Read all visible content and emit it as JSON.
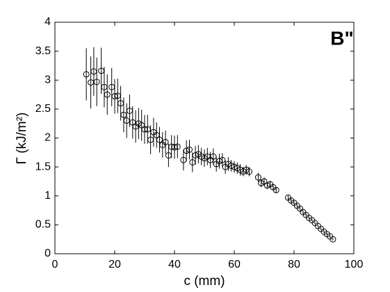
{
  "chart_data": {
    "type": "scatter",
    "annotation": "B\"",
    "xlabel": "c (mm)",
    "ylabel": "Γ (kJ/m²)",
    "x": [
      10.5,
      12,
      13,
      14,
      15.5,
      16.5,
      17.5,
      19,
      20,
      21,
      22,
      23,
      24,
      25,
      26,
      27,
      28,
      29,
      30,
      31,
      32,
      33,
      34,
      35,
      36,
      37,
      38,
      39,
      40,
      41,
      43,
      44,
      45,
      46,
      47,
      48,
      49,
      50,
      51,
      52,
      53,
      54,
      55,
      56,
      57,
      58,
      59,
      60,
      61,
      62,
      63,
      64,
      65,
      68,
      69,
      70,
      71,
      72,
      73,
      74,
      78,
      79,
      80,
      81,
      82,
      83,
      84,
      85,
      86,
      87,
      88,
      89,
      90,
      91,
      92,
      93
    ],
    "values": [
      3.1,
      2.96,
      3.15,
      2.97,
      3.16,
      2.88,
      2.75,
      2.88,
      2.72,
      2.73,
      2.6,
      2.4,
      2.3,
      2.47,
      2.27,
      2.2,
      2.25,
      2.22,
      2.15,
      2.15,
      1.97,
      2.1,
      2.05,
      1.97,
      1.88,
      1.93,
      1.7,
      1.85,
      1.84,
      1.85,
      1.62,
      1.78,
      1.8,
      1.58,
      1.7,
      1.72,
      1.68,
      1.65,
      1.68,
      1.62,
      1.68,
      1.55,
      1.6,
      1.62,
      1.5,
      1.55,
      1.52,
      1.5,
      1.48,
      1.45,
      1.42,
      1.45,
      1.42,
      1.32,
      1.22,
      1.25,
      1.18,
      1.2,
      1.15,
      1.1,
      0.97,
      0.92,
      0.88,
      0.83,
      0.78,
      0.72,
      0.67,
      0.62,
      0.58,
      0.53,
      0.48,
      0.43,
      0.38,
      0.34,
      0.3,
      0.25
    ],
    "errors": [
      0.45,
      0.45,
      0.42,
      0.42,
      0.4,
      0.35,
      0.35,
      0.33,
      0.3,
      0.3,
      0.3,
      0.3,
      0.3,
      0.28,
      0.28,
      0.28,
      0.27,
      0.27,
      0.25,
      0.25,
      0.25,
      0.25,
      0.22,
      0.22,
      0.22,
      0.2,
      0.2,
      0.2,
      0.2,
      0.2,
      0.18,
      0.18,
      0.17,
      0.17,
      0.16,
      0.16,
      0.15,
      0.15,
      0.15,
      0.14,
      0.14,
      0.13,
      0.13,
      0.12,
      0.12,
      0.12,
      0.1,
      0.1,
      0.1,
      0.1,
      0.08,
      0.08,
      0.08,
      0.08,
      0.07,
      0.07,
      0.06,
      0.06,
      0.05,
      0.05,
      0.04,
      0.04,
      0.03,
      0.03,
      0.03,
      0.03,
      0.03,
      0.02,
      0.02,
      0.02,
      0.02,
      0.02,
      0.02,
      0.02,
      0.02,
      0.02
    ],
    "color": "#000000",
    "xlim": [
      0,
      100
    ],
    "xticks": [
      0,
      20,
      40,
      60,
      80,
      100
    ],
    "ylim": [
      0,
      4
    ],
    "yticks": [
      0,
      0.5,
      1,
      1.5,
      2,
      2.5,
      3,
      3.5,
      4
    ]
  }
}
